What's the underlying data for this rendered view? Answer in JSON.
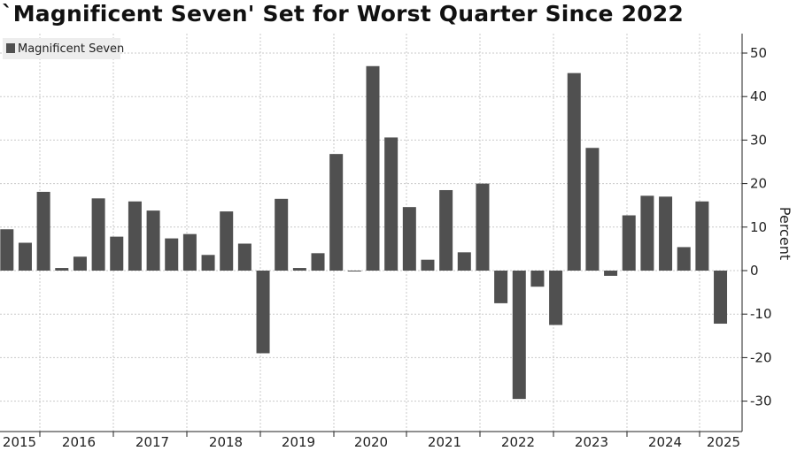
{
  "chart_data": {
    "type": "bar",
    "title": "`Magnificent Seven' Set for Worst Quarter Since 2022",
    "ylabel": "Percent",
    "ylim": [
      -36,
      55
    ],
    "yticks": [
      50,
      40,
      30,
      20,
      10,
      0,
      -10,
      -20,
      -30
    ],
    "grid": true,
    "legend": "top-left",
    "bar_color": "#505050",
    "x_labels": [
      "2015",
      "2016",
      "2017",
      "2018",
      "2019",
      "2020",
      "2021",
      "2022",
      "2023",
      "2024",
      "2025"
    ],
    "series": [
      {
        "name": "Magnificent Seven",
        "values": [
          9.5,
          6.4,
          18.1,
          0.6,
          3.2,
          16.6,
          7.8,
          15.9,
          13.8,
          7.4,
          8.4,
          3.6,
          13.6,
          6.2,
          -19,
          16.5,
          0.6,
          4.0,
          26.8,
          -0.2,
          47.0,
          30.6,
          14.6,
          2.5,
          18.5,
          4.2,
          20.0,
          -7.5,
          -29.5,
          -3.7,
          -12.5,
          45.4,
          28.2,
          -1.2,
          12.7,
          17.2,
          17.0,
          5.4,
          15.9,
          -12.2
        ]
      }
    ]
  }
}
